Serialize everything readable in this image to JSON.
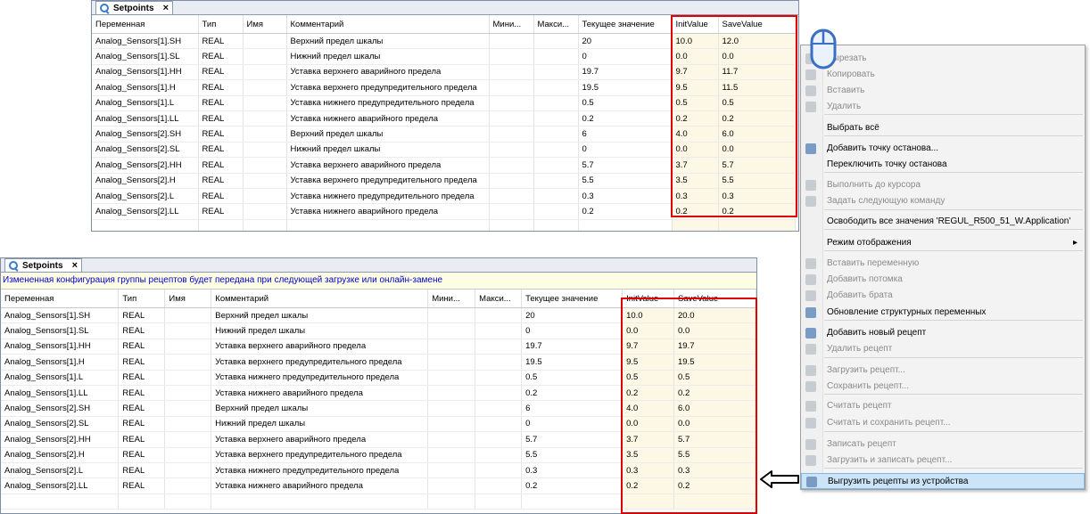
{
  "top_panel": {
    "tab_title": "Setpoints",
    "columns": [
      "Переменная",
      "Тип",
      "Имя",
      "Комментарий",
      "Мини...",
      "Макси...",
      "Текущее значение",
      "InitValue",
      "SaveValue"
    ],
    "rows": [
      [
        "Analog_Sensors[1].SH",
        "REAL",
        "",
        "Верхний предел шкалы",
        "",
        "",
        "20",
        "10.0",
        "12.0"
      ],
      [
        "Analog_Sensors[1].SL",
        "REAL",
        "",
        "Нижний предел шкалы",
        "",
        "",
        "0",
        "0.0",
        "0.0"
      ],
      [
        "Analog_Sensors[1].HH",
        "REAL",
        "",
        "Уставка верхнего аварийного предела",
        "",
        "",
        "19.7",
        "9.7",
        "11.7"
      ],
      [
        "Analog_Sensors[1].H",
        "REAL",
        "",
        "Уставка верхнего предупредительного предела",
        "",
        "",
        "19.5",
        "9.5",
        "11.5"
      ],
      [
        "Analog_Sensors[1].L",
        "REAL",
        "",
        "Уставка нижнего предупредительного предела",
        "",
        "",
        "0.5",
        "0.5",
        "0.5"
      ],
      [
        "Analog_Sensors[1].LL",
        "REAL",
        "",
        "Уставка нижнего аварийного предела",
        "",
        "",
        "0.2",
        "0.2",
        "0.2"
      ],
      [
        "Analog_Sensors[2].SH",
        "REAL",
        "",
        "Верхний предел шкалы",
        "",
        "",
        "6",
        "4.0",
        "6.0"
      ],
      [
        "Analog_Sensors[2].SL",
        "REAL",
        "",
        "Нижний предел шкалы",
        "",
        "",
        "0",
        "0.0",
        "0.0"
      ],
      [
        "Analog_Sensors[2].HH",
        "REAL",
        "",
        "Уставка верхнего аварийного предела",
        "",
        "",
        "5.7",
        "3.7",
        "5.7"
      ],
      [
        "Analog_Sensors[2].H",
        "REAL",
        "",
        "Уставка верхнего предупредительного предела",
        "",
        "",
        "5.5",
        "3.5",
        "5.5"
      ],
      [
        "Analog_Sensors[2].L",
        "REAL",
        "",
        "Уставка нижнего предупредительного предела",
        "",
        "",
        "0.3",
        "0.3",
        "0.3"
      ],
      [
        "Analog_Sensors[2].LL",
        "REAL",
        "",
        "Уставка нижнего аварийного предела",
        "",
        "",
        "0.2",
        "0.2",
        "0.2"
      ],
      [
        "",
        "",
        "",
        "",
        "",
        "",
        "",
        "",
        ""
      ]
    ]
  },
  "bottom_panel": {
    "tab_title": "Setpoints",
    "notice": "Измененная конфигурация группы рецептов будет передана при следующей загрузке или онлайн-замене",
    "columns": [
      "Переменная",
      "Тип",
      "Имя",
      "Комментарий",
      "Мини...",
      "Макси...",
      "Текущее значение",
      "InitValue",
      "SaveValue"
    ],
    "rows": [
      [
        "Analog_Sensors[1].SH",
        "REAL",
        "",
        "Верхний предел шкалы",
        "",
        "",
        "20",
        "10.0",
        "20.0"
      ],
      [
        "Analog_Sensors[1].SL",
        "REAL",
        "",
        "Нижний предел шкалы",
        "",
        "",
        "0",
        "0.0",
        "0.0"
      ],
      [
        "Analog_Sensors[1].HH",
        "REAL",
        "",
        "Уставка верхнего аварийного предела",
        "",
        "",
        "19.7",
        "9.7",
        "19.7"
      ],
      [
        "Analog_Sensors[1].H",
        "REAL",
        "",
        "Уставка верхнего предупредительного предела",
        "",
        "",
        "19.5",
        "9.5",
        "19.5"
      ],
      [
        "Analog_Sensors[1].L",
        "REAL",
        "",
        "Уставка нижнего предупредительного предела",
        "",
        "",
        "0.5",
        "0.5",
        "0.5"
      ],
      [
        "Analog_Sensors[1].LL",
        "REAL",
        "",
        "Уставка нижнего аварийного предела",
        "",
        "",
        "0.2",
        "0.2",
        "0.2"
      ],
      [
        "Analog_Sensors[2].SH",
        "REAL",
        "",
        "Верхний предел шкалы",
        "",
        "",
        "6",
        "4.0",
        "6.0"
      ],
      [
        "Analog_Sensors[2].SL",
        "REAL",
        "",
        "Нижний предел шкалы",
        "",
        "",
        "0",
        "0.0",
        "0.0"
      ],
      [
        "Analog_Sensors[2].HH",
        "REAL",
        "",
        "Уставка верхнего аварийного предела",
        "",
        "",
        "5.7",
        "3.7",
        "5.7"
      ],
      [
        "Analog_Sensors[2].H",
        "REAL",
        "",
        "Уставка верхнего предупредительного предела",
        "",
        "",
        "5.5",
        "3.5",
        "5.5"
      ],
      [
        "Analog_Sensors[2].L",
        "REAL",
        "",
        "Уставка нижнего предупредительного предела",
        "",
        "",
        "0.3",
        "0.3",
        "0.3"
      ],
      [
        "Analog_Sensors[2].LL",
        "REAL",
        "",
        "Уставка нижнего аварийного предела",
        "",
        "",
        "0.2",
        "0.2",
        "0.2"
      ],
      [
        "",
        "",
        "",
        "",
        "",
        "",
        "",
        "",
        ""
      ]
    ]
  },
  "context_menu": {
    "items": [
      {
        "label": "Вырезать",
        "enabled": false,
        "icon": "cut-icon"
      },
      {
        "label": "Копировать",
        "enabled": false,
        "icon": "copy-icon"
      },
      {
        "label": "Вставить",
        "enabled": false,
        "icon": "paste-icon"
      },
      {
        "label": "Удалить",
        "enabled": false,
        "icon": "delete-icon"
      },
      {
        "label": "Выбрать всё",
        "enabled": true,
        "icon": ""
      },
      {
        "label": "Добавить точку останова...",
        "enabled": true,
        "icon": "breakpoint-icon"
      },
      {
        "label": "Переключить точку останова",
        "enabled": true,
        "icon": ""
      },
      {
        "label": "Выполнить до курсора",
        "enabled": false,
        "icon": "run-to-cursor-icon"
      },
      {
        "label": "Задать следующую команду",
        "enabled": false,
        "icon": "set-next-icon"
      },
      {
        "label": "Освободить все значения 'REGUL_R500_51_W.Application'",
        "enabled": true,
        "icon": ""
      },
      {
        "label": "Режим отображения",
        "enabled": true,
        "icon": "",
        "submenu": true
      },
      {
        "label": "Вставить переменную",
        "enabled": false,
        "icon": "insert-variable-icon"
      },
      {
        "label": "Добавить потомка",
        "enabled": false,
        "icon": "add-child-icon"
      },
      {
        "label": "Добавить брата",
        "enabled": false,
        "icon": "add-sibling-icon"
      },
      {
        "label": "Обновление структурных переменных",
        "enabled": true,
        "icon": "refresh-icon"
      },
      {
        "label": "Добавить новый рецепт",
        "enabled": true,
        "icon": "add-recipe-icon"
      },
      {
        "label": "Удалить рецепт",
        "enabled": false,
        "icon": "remove-recipe-icon"
      },
      {
        "label": "Загрузить рецепт...",
        "enabled": false,
        "icon": "load-recipe-icon"
      },
      {
        "label": "Сохранить рецепт...",
        "enabled": false,
        "icon": "save-recipe-icon"
      },
      {
        "label": "Считать рецепт",
        "enabled": false,
        "icon": "read-recipe-icon"
      },
      {
        "label": "Считать и сохранить рецепт...",
        "enabled": false,
        "icon": "read-save-recipe-icon"
      },
      {
        "label": "Записать рецепт",
        "enabled": false,
        "icon": "write-recipe-icon"
      },
      {
        "label": "Загрузить и записать рецепт...",
        "enabled": false,
        "icon": "load-write-recipe-icon"
      },
      {
        "label": "Выгрузить рецепты из устройства",
        "enabled": true,
        "highlighted": true,
        "icon": "upload-recipes-icon"
      }
    ]
  },
  "colors": {
    "highlight_box": "#e00000",
    "value_cell_bg": "#fdf7e6",
    "notice_text": "#0000cc",
    "menu_highlight": "#cce4f7"
  }
}
